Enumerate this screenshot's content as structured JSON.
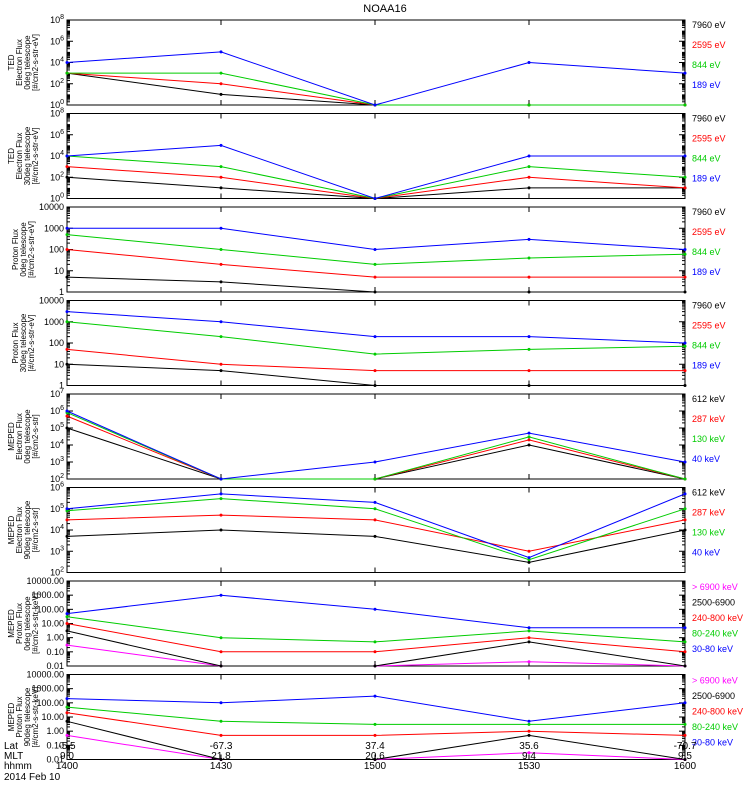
{
  "title": "NOAA16",
  "panels": [
    {
      "ylabel": [
        "TED",
        "Electron Flux",
        "0deg telescope",
        "[#/cm2-s-str-eV]"
      ],
      "scale": "log",
      "ylim": [
        1,
        100000000
      ],
      "ticks": [
        {
          "v": 1,
          "t": "10^0"
        },
        {
          "v": 100,
          "t": "10^2"
        },
        {
          "v": 10000,
          "t": "10^4"
        },
        {
          "v": 1000000,
          "t": "10^6"
        },
        {
          "v": 100000000,
          "t": "10^8"
        }
      ],
      "legend": [
        {
          "text": "7960 eV",
          "color": "#000000"
        },
        {
          "text": "2595 eV",
          "color": "#ff0000"
        },
        {
          "text": "844 eV",
          "color": "#00cc00"
        },
        {
          "text": "189 eV",
          "color": "#0000ff"
        }
      ]
    },
    {
      "ylabel": [
        "TED",
        "Electron Flux",
        "30deg telescope",
        "[#/cm2-s-str-eV]"
      ],
      "scale": "log",
      "ylim": [
        1,
        100000000
      ],
      "ticks": [
        {
          "v": 1,
          "t": "10^0"
        },
        {
          "v": 100,
          "t": "10^2"
        },
        {
          "v": 10000,
          "t": "10^4"
        },
        {
          "v": 1000000,
          "t": "10^6"
        },
        {
          "v": 100000000,
          "t": "10^8"
        }
      ],
      "legend": [
        {
          "text": "7960 eV",
          "color": "#000000"
        },
        {
          "text": "2595 eV",
          "color": "#ff0000"
        },
        {
          "text": "844 eV",
          "color": "#00cc00"
        },
        {
          "text": "189 eV",
          "color": "#0000ff"
        }
      ]
    },
    {
      "ylabel": [
        "Proton Flux",
        "0deg telescope",
        "[#/cm2-s-str-eV]"
      ],
      "scale": "log",
      "ylim": [
        1,
        10000
      ],
      "ticks": [
        {
          "v": 1,
          "t": "1"
        },
        {
          "v": 10,
          "t": "10"
        },
        {
          "v": 100,
          "t": "100"
        },
        {
          "v": 1000,
          "t": "1000"
        },
        {
          "v": 10000,
          "t": "10000"
        }
      ],
      "legend": [
        {
          "text": "7960 eV",
          "color": "#000000"
        },
        {
          "text": "2595 eV",
          "color": "#ff0000"
        },
        {
          "text": "844 eV",
          "color": "#00cc00"
        },
        {
          "text": "189 eV",
          "color": "#0000ff"
        }
      ]
    },
    {
      "ylabel": [
        "Proton Flux",
        "30deg telescope",
        "[#/cm2-s-str-eV]"
      ],
      "scale": "log",
      "ylim": [
        1,
        10000
      ],
      "ticks": [
        {
          "v": 1,
          "t": "1"
        },
        {
          "v": 10,
          "t": "10"
        },
        {
          "v": 100,
          "t": "100"
        },
        {
          "v": 1000,
          "t": "1000"
        },
        {
          "v": 10000,
          "t": "10000"
        }
      ],
      "legend": [
        {
          "text": "7960 eV",
          "color": "#000000"
        },
        {
          "text": "2595 eV",
          "color": "#ff0000"
        },
        {
          "text": "844 eV",
          "color": "#00cc00"
        },
        {
          "text": "189 eV",
          "color": "#0000ff"
        }
      ]
    },
    {
      "ylabel": [
        "MEPED",
        "Electron Flux",
        "0deg telescope",
        "[#/cm2-s-str]"
      ],
      "scale": "log",
      "ylim": [
        100,
        10000000
      ],
      "ticks": [
        {
          "v": 100,
          "t": "10^2"
        },
        {
          "v": 1000,
          "t": "10^3"
        },
        {
          "v": 10000,
          "t": "10^4"
        },
        {
          "v": 100000,
          "t": "10^5"
        },
        {
          "v": 1000000,
          "t": "10^6"
        },
        {
          "v": 10000000,
          "t": "10^7"
        }
      ],
      "legend": [
        {
          "text": "612 keV",
          "color": "#000000"
        },
        {
          "text": "287 keV",
          "color": "#ff0000"
        },
        {
          "text": "130 keV",
          "color": "#00cc00"
        },
        {
          "text": "40 keV",
          "color": "#0000ff"
        }
      ]
    },
    {
      "ylabel": [
        "MEPED",
        "Electron Flux",
        "90deg telescope",
        "[#/cm2-s-str]"
      ],
      "scale": "log",
      "ylim": [
        100,
        1000000
      ],
      "ticks": [
        {
          "v": 100,
          "t": "10^2"
        },
        {
          "v": 1000,
          "t": "10^3"
        },
        {
          "v": 10000,
          "t": "10^4"
        },
        {
          "v": 100000,
          "t": "10^5"
        },
        {
          "v": 1000000,
          "t": "10^6"
        }
      ],
      "legend": [
        {
          "text": "612 keV",
          "color": "#000000"
        },
        {
          "text": "287 keV",
          "color": "#ff0000"
        },
        {
          "text": "130 keV",
          "color": "#00cc00"
        },
        {
          "text": "40 keV",
          "color": "#0000ff"
        }
      ]
    },
    {
      "ylabel": [
        "MEPED",
        "Proton Flux",
        "0deg telescope",
        "[#/cm2-s-str-keV]"
      ],
      "scale": "log",
      "ylim": [
        0.01,
        10000
      ],
      "ticks": [
        {
          "v": 0.01,
          "t": "0.01"
        },
        {
          "v": 0.1,
          "t": "0.10"
        },
        {
          "v": 1,
          "t": "1.00"
        },
        {
          "v": 10,
          "t": "10.00"
        },
        {
          "v": 100,
          "t": "100.00"
        },
        {
          "v": 1000,
          "t": "1000.00"
        },
        {
          "v": 10000,
          "t": "10000.00"
        }
      ],
      "legend": [
        {
          "text": "> 6900 keV",
          "color": "#ff00ff"
        },
        {
          "text": "2500-6900",
          "color": "#000000"
        },
        {
          "text": "240-800 keV",
          "color": "#ff0000"
        },
        {
          "text": "80-240 keV",
          "color": "#00cc00"
        },
        {
          "text": "30-80 keV",
          "color": "#0000ff"
        }
      ]
    },
    {
      "ylabel": [
        "MEPED",
        "Proton Flux",
        "90deg telescope",
        "[#/cm2-s-str-keV]"
      ],
      "scale": "log",
      "ylim": [
        0.01,
        10000
      ],
      "ticks": [
        {
          "v": 0.01,
          "t": "0.01"
        },
        {
          "v": 0.1,
          "t": "0.10"
        },
        {
          "v": 1,
          "t": "1.00"
        },
        {
          "v": 10,
          "t": "10.00"
        },
        {
          "v": 100,
          "t": "100.00"
        },
        {
          "v": 1000,
          "t": "1000.00"
        },
        {
          "v": 10000,
          "t": "10000.00"
        }
      ],
      "legend": [
        {
          "text": "> 6900 keV",
          "color": "#ff00ff"
        },
        {
          "text": "2500-6900",
          "color": "#000000"
        },
        {
          "text": "240-800 keV",
          "color": "#ff0000"
        },
        {
          "text": "80-240 keV",
          "color": "#00cc00"
        },
        {
          "text": "30-80 keV",
          "color": "#0000ff"
        }
      ]
    }
  ],
  "xaxis": {
    "rows": [
      {
        "label": "Lat",
        "values": [
          "-5.5",
          "-67.3",
          "37.4",
          "35.6",
          "-70.7"
        ]
      },
      {
        "label": "MLT",
        "values": [
          "9.0",
          "21.8",
          "20.6",
          "9.4",
          "9.5"
        ]
      },
      {
        "label": "hhmm",
        "values": [
          "1400",
          "1430",
          "1500",
          "1530",
          "1600"
        ]
      }
    ],
    "date": "2014 Feb 10"
  },
  "chart_data": {
    "type": "line",
    "title": "NOAA16",
    "x": [
      "1400",
      "1430",
      "1500",
      "1530",
      "1600"
    ],
    "xlabel": "hhmm",
    "scale": "log",
    "panels": [
      {
        "name": "TED Electron Flux 0deg telescope",
        "ylim": [
          1,
          100000000
        ],
        "series": [
          {
            "name": "7960 eV",
            "values": [
              1000,
              10,
              1,
              1,
              1
            ]
          },
          {
            "name": "2595 eV",
            "values": [
              1000,
              100,
              1,
              1,
              1
            ]
          },
          {
            "name": "844 eV",
            "values": [
              1000,
              1000,
              1,
              1,
              1
            ]
          },
          {
            "name": "189 eV",
            "values": [
              10000,
              100000,
              1,
              10000,
              1000
            ]
          }
        ]
      },
      {
        "name": "TED Electron Flux 30deg telescope",
        "ylim": [
          1,
          100000000
        ],
        "series": [
          {
            "name": "7960 eV",
            "values": [
              100,
              10,
              1,
              10,
              10
            ]
          },
          {
            "name": "2595 eV",
            "values": [
              1000,
              100,
              1,
              100,
              10
            ]
          },
          {
            "name": "844 eV",
            "values": [
              10000,
              1000,
              1,
              1000,
              100
            ]
          },
          {
            "name": "189 eV",
            "values": [
              10000,
              100000,
              1,
              10000,
              10000
            ]
          }
        ]
      },
      {
        "name": "Proton Flux 0deg telescope",
        "ylim": [
          1,
          10000
        ],
        "series": [
          {
            "name": "7960 eV",
            "values": [
              5,
              3,
              1,
              1,
              1
            ]
          },
          {
            "name": "2595 eV",
            "values": [
              100,
              20,
              5,
              5,
              5
            ]
          },
          {
            "name": "844 eV",
            "values": [
              500,
              100,
              20,
              40,
              60
            ]
          },
          {
            "name": "189 eV",
            "values": [
              1000,
              1000,
              100,
              300,
              100
            ]
          }
        ]
      },
      {
        "name": "Proton Flux 30deg telescope",
        "ylim": [
          1,
          10000
        ],
        "series": [
          {
            "name": "7960 eV",
            "values": [
              10,
              5,
              1,
              1,
              1
            ]
          },
          {
            "name": "2595 eV",
            "values": [
              50,
              10,
              5,
              5,
              5
            ]
          },
          {
            "name": "844 eV",
            "values": [
              1000,
              200,
              30,
              50,
              70
            ]
          },
          {
            "name": "189 eV",
            "values": [
              3000,
              1000,
              200,
              200,
              100
            ]
          }
        ]
      },
      {
        "name": "MEPED Electron Flux 0deg telescope",
        "ylim": [
          100,
          10000000
        ],
        "series": [
          {
            "name": "612 keV",
            "values": [
              100000,
              100,
              100,
              10000,
              100
            ]
          },
          {
            "name": "287 keV",
            "values": [
              500000,
              100,
              100,
              20000,
              100
            ]
          },
          {
            "name": "130 keV",
            "values": [
              800000,
              100,
              100,
              30000,
              100
            ]
          },
          {
            "name": "40 keV",
            "values": [
              1000000,
              100,
              1000,
              50000,
              1000
            ]
          }
        ]
      },
      {
        "name": "MEPED Electron Flux 90deg telescope",
        "ylim": [
          100,
          1000000
        ],
        "series": [
          {
            "name": "612 keV",
            "values": [
              5000,
              10000,
              5000,
              300,
              10000
            ]
          },
          {
            "name": "287 keV",
            "values": [
              30000,
              50000,
              30000,
              1000,
              30000
            ]
          },
          {
            "name": "130 keV",
            "values": [
              80000,
              300000,
              100000,
              400,
              100000
            ]
          },
          {
            "name": "40 keV",
            "values": [
              100000,
              500000,
              200000,
              500,
              500000
            ]
          }
        ]
      },
      {
        "name": "MEPED Proton Flux 0deg telescope",
        "ylim": [
          0.01,
          10000
        ],
        "series": [
          {
            "name": "> 6900 keV",
            "values": [
              0.3,
              0.01,
              0.01,
              0.02,
              0.01
            ]
          },
          {
            "name": "2500-6900",
            "values": [
              3,
              0.01,
              0.01,
              0.5,
              0.01
            ]
          },
          {
            "name": "240-800 keV",
            "values": [
              10,
              0.1,
              0.1,
              1,
              0.1
            ]
          },
          {
            "name": "80-240 keV",
            "values": [
              30,
              1,
              0.5,
              3,
              0.5
            ]
          },
          {
            "name": "30-80 keV",
            "values": [
              50,
              1000,
              100,
              5,
              5
            ]
          }
        ]
      },
      {
        "name": "MEPED Proton Flux 90deg telescope",
        "ylim": [
          0.01,
          10000
        ],
        "series": [
          {
            "name": "> 6900 keV",
            "values": [
              0.5,
              0.01,
              0.01,
              0.03,
              0.01
            ]
          },
          {
            "name": "2500-6900",
            "values": [
              5,
              0.01,
              0.01,
              0.5,
              0.01
            ]
          },
          {
            "name": "240-800 keV",
            "values": [
              20,
              0.5,
              0.5,
              1,
              0.5
            ]
          },
          {
            "name": "80-240 keV",
            "values": [
              50,
              5,
              3,
              3,
              3
            ]
          },
          {
            "name": "30-80 keV",
            "values": [
              200,
              100,
              300,
              5,
              100
            ]
          }
        ]
      }
    ]
  }
}
